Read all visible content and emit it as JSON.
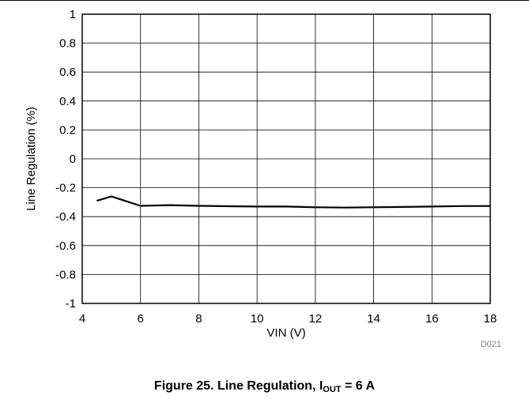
{
  "chart_data": {
    "type": "line",
    "xlabel": "VIN (V)",
    "ylabel": "Line Regulation (%)",
    "xlim": [
      4,
      18
    ],
    "ylim": [
      -1,
      1
    ],
    "xticks": [
      "4",
      "6",
      "8",
      "10",
      "12",
      "14",
      "16",
      "18"
    ],
    "yticks": [
      "1",
      "0.8",
      "0.6",
      "0.4",
      "0.2",
      "0",
      "-0.2",
      "-0.4",
      "-0.6",
      "-0.8",
      "-1"
    ],
    "grid": true,
    "series": [
      {
        "x": [
          4.5,
          5,
          6,
          7,
          8,
          9,
          10,
          11,
          12,
          13,
          14,
          15,
          16,
          17,
          18
        ],
        "y": [
          -0.29,
          -0.26,
          -0.325,
          -0.32,
          -0.325,
          -0.328,
          -0.33,
          -0.33,
          -0.335,
          -0.337,
          -0.335,
          -0.333,
          -0.33,
          -0.327,
          -0.326
        ]
      }
    ],
    "figure_id": "D021",
    "caption": {
      "prefix": "Figure 25. Line Regulation, I",
      "subscript": "OUT",
      "suffix": " = 6 A"
    }
  }
}
